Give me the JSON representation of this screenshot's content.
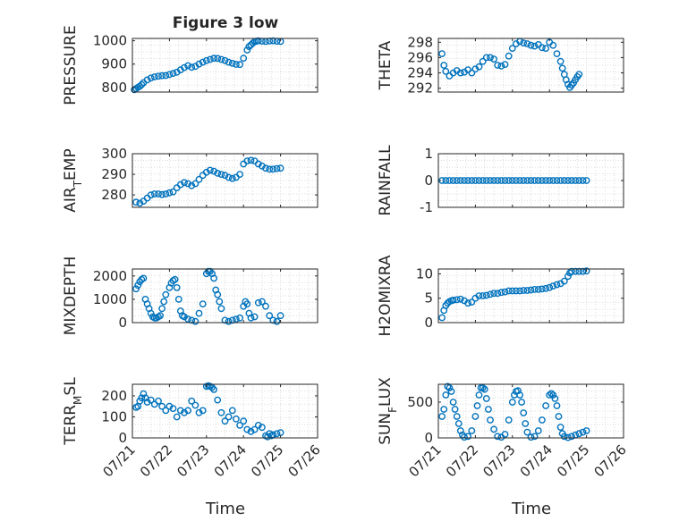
{
  "figure": {
    "title": "Figure 3 low",
    "xlabel": "Time"
  },
  "colors": {
    "marker": "#0072BD",
    "axis": "#262626",
    "grid": "#dcdcdc"
  },
  "chart_data": [
    {
      "type": "scatter",
      "ylabel": "PRESSURE",
      "xticks": [
        "07/21",
        "07/22",
        "07/23",
        "07/24",
        "07/25",
        "07/26"
      ],
      "xlim": [
        0,
        5
      ],
      "ylim": [
        780,
        1010
      ],
      "yticks": [
        800,
        900,
        1000
      ],
      "grid": true,
      "x": [
        0.05,
        0.1,
        0.15,
        0.2,
        0.25,
        0.3,
        0.4,
        0.5,
        0.6,
        0.7,
        0.8,
        0.9,
        1.0,
        1.1,
        1.2,
        1.3,
        1.4,
        1.5,
        1.6,
        1.7,
        1.8,
        1.9,
        2.0,
        2.1,
        2.2,
        2.3,
        2.4,
        2.5,
        2.6,
        2.7,
        2.8,
        2.9,
        3.0,
        3.1,
        3.15,
        3.2,
        3.25,
        3.3,
        3.35,
        3.4,
        3.5,
        3.6,
        3.7,
        3.8,
        3.9,
        4.0
      ],
      "y": [
        790,
        795,
        800,
        805,
        812,
        820,
        832,
        840,
        845,
        848,
        850,
        851,
        855,
        860,
        865,
        875,
        885,
        893,
        886,
        890,
        900,
        908,
        915,
        920,
        925,
        924,
        920,
        915,
        908,
        903,
        899,
        898,
        925,
        960,
        975,
        982,
        990,
        996,
        998,
        1000,
        998,
        997,
        999,
        1000,
        998,
        997
      ]
    },
    {
      "type": "scatter",
      "ylabel": "THETA",
      "xticks": [
        "07/21",
        "07/22",
        "07/23",
        "07/24",
        "07/25",
        "07/26"
      ],
      "xlim": [
        0,
        5
      ],
      "ylim": [
        291.5,
        298.5
      ],
      "yticks": [
        292,
        294,
        296,
        298
      ],
      "grid": true,
      "x": [
        0.1,
        0.15,
        0.2,
        0.3,
        0.4,
        0.5,
        0.6,
        0.7,
        0.8,
        0.9,
        1.0,
        1.1,
        1.2,
        1.3,
        1.4,
        1.5,
        1.6,
        1.7,
        1.8,
        1.9,
        2.0,
        2.1,
        2.2,
        2.3,
        2.4,
        2.5,
        2.6,
        2.7,
        2.8,
        2.9,
        3.0,
        3.1,
        3.2,
        3.3,
        3.35,
        3.4,
        3.45,
        3.5,
        3.55,
        3.6,
        3.65,
        3.7,
        3.75,
        3.8
      ],
      "y": [
        296.5,
        295,
        294.2,
        293.6,
        294,
        294.3,
        294,
        294.1,
        294.4,
        294,
        294.5,
        294.8,
        295.5,
        296,
        296,
        295.8,
        295,
        294.9,
        295.1,
        296.2,
        297.2,
        297.8,
        298.1,
        297.9,
        297.8,
        297.6,
        297.5,
        297.7,
        297.3,
        297.2,
        298,
        297.6,
        296.5,
        295.5,
        294.6,
        293.8,
        293.1,
        292.5,
        292.1,
        292.4,
        292.7,
        293.1,
        293.5,
        293.8
      ]
    },
    {
      "type": "scatter",
      "ylabel": "AIR_TEMP",
      "xticks": [
        "07/21",
        "07/22",
        "07/23",
        "07/24",
        "07/25",
        "07/26"
      ],
      "xlim": [
        0,
        5
      ],
      "ylim": [
        274,
        300
      ],
      "yticks": [
        280,
        290,
        300
      ],
      "grid": true,
      "x": [
        0.1,
        0.2,
        0.3,
        0.4,
        0.5,
        0.6,
        0.7,
        0.8,
        0.9,
        1.0,
        1.1,
        1.2,
        1.3,
        1.4,
        1.5,
        1.6,
        1.7,
        1.8,
        1.9,
        2.0,
        2.1,
        2.2,
        2.3,
        2.4,
        2.5,
        2.6,
        2.7,
        2.8,
        2.9,
        3.0,
        3.1,
        3.2,
        3.3,
        3.4,
        3.5,
        3.6,
        3.7,
        3.8,
        3.9,
        4.0
      ],
      "y": [
        276.5,
        276,
        277,
        278.5,
        280,
        280.5,
        280.5,
        280.2,
        280.5,
        281,
        281.5,
        283.5,
        285,
        286,
        285.5,
        284.5,
        285.5,
        287.5,
        289.5,
        291,
        292,
        291.5,
        290.5,
        290,
        289.5,
        288.5,
        288,
        288.5,
        290,
        295,
        296.5,
        296.8,
        296.5,
        295,
        294,
        293,
        292.5,
        292.5,
        292.8,
        293
      ]
    },
    {
      "type": "scatter",
      "ylabel": "RAINFALL",
      "xticks": [
        "07/21",
        "07/22",
        "07/23",
        "07/24",
        "07/25",
        "07/26"
      ],
      "xlim": [
        0,
        5
      ],
      "ylim": [
        -1,
        1
      ],
      "yticks": [
        -1,
        0,
        1
      ],
      "grid": true,
      "x": [
        0.1,
        0.2,
        0.3,
        0.4,
        0.5,
        0.6,
        0.7,
        0.8,
        0.9,
        1.0,
        1.1,
        1.2,
        1.3,
        1.4,
        1.5,
        1.6,
        1.7,
        1.8,
        1.9,
        2.0,
        2.1,
        2.2,
        2.3,
        2.4,
        2.5,
        2.6,
        2.7,
        2.8,
        2.9,
        3.0,
        3.1,
        3.2,
        3.3,
        3.4,
        3.5,
        3.6,
        3.7,
        3.8,
        3.9,
        4.0
      ],
      "y": [
        0,
        0,
        0,
        0,
        0,
        0,
        0,
        0,
        0,
        0,
        0,
        0,
        0,
        0,
        0,
        0,
        0,
        0,
        0,
        0,
        0,
        0,
        0,
        0,
        0,
        0,
        0,
        0,
        0,
        0,
        0,
        0,
        0,
        0,
        0,
        0,
        0,
        0,
        0,
        0
      ]
    },
    {
      "type": "scatter",
      "ylabel": "MIXDEPTH",
      "xticks": [
        "07/21",
        "07/22",
        "07/23",
        "07/24",
        "07/25",
        "07/26"
      ],
      "xlim": [
        0,
        5
      ],
      "ylim": [
        0,
        2300
      ],
      "yticks": [
        0,
        1000,
        2000
      ],
      "grid": true,
      "x": [
        0.1,
        0.15,
        0.2,
        0.25,
        0.3,
        0.35,
        0.4,
        0.45,
        0.5,
        0.55,
        0.6,
        0.65,
        0.7,
        0.75,
        0.8,
        0.85,
        0.9,
        1.0,
        1.05,
        1.1,
        1.15,
        1.2,
        1.25,
        1.3,
        1.35,
        1.4,
        1.5,
        1.6,
        1.7,
        1.8,
        1.9,
        2.0,
        2.05,
        2.1,
        2.15,
        2.2,
        2.25,
        2.3,
        2.35,
        2.4,
        2.5,
        2.6,
        2.7,
        2.8,
        2.9,
        3.0,
        3.05,
        3.1,
        3.15,
        3.2,
        3.3,
        3.4,
        3.5,
        3.6,
        3.7,
        3.8,
        3.9,
        4.0
      ],
      "y": [
        1450,
        1600,
        1750,
        1850,
        1900,
        1000,
        800,
        600,
        400,
        250,
        200,
        200,
        250,
        300,
        600,
        900,
        1200,
        1500,
        1700,
        1800,
        1850,
        1500,
        1000,
        500,
        300,
        250,
        150,
        100,
        50,
        400,
        800,
        2100,
        2200,
        2200,
        2100,
        1900,
        1400,
        1200,
        900,
        600,
        100,
        50,
        100,
        150,
        200,
        700,
        900,
        800,
        400,
        200,
        250,
        850,
        900,
        700,
        300,
        100,
        50,
        300
      ]
    },
    {
      "type": "scatter",
      "ylabel": "H2OMIXRA",
      "xticks": [
        "07/21",
        "07/22",
        "07/23",
        "07/24",
        "07/25",
        "07/26"
      ],
      "xlim": [
        0,
        5
      ],
      "ylim": [
        0,
        11
      ],
      "yticks": [
        0,
        5,
        10
      ],
      "grid": true,
      "x": [
        0.1,
        0.15,
        0.2,
        0.25,
        0.3,
        0.35,
        0.4,
        0.5,
        0.6,
        0.7,
        0.8,
        0.9,
        1.0,
        1.1,
        1.2,
        1.3,
        1.4,
        1.5,
        1.6,
        1.7,
        1.8,
        1.9,
        2.0,
        2.1,
        2.2,
        2.3,
        2.4,
        2.5,
        2.6,
        2.7,
        2.8,
        2.9,
        3.0,
        3.1,
        3.2,
        3.3,
        3.4,
        3.5,
        3.55,
        3.6,
        3.7,
        3.8,
        3.9,
        4.0
      ],
      "y": [
        1,
        2.5,
        3.5,
        4,
        4.3,
        4.5,
        4.6,
        4.7,
        4.8,
        4.5,
        4,
        4.2,
        5,
        5.5,
        5.5,
        5.6,
        5.8,
        6,
        6,
        6.2,
        6.3,
        6.5,
        6.5,
        6.5,
        6.5,
        6.6,
        6.6,
        6.7,
        6.8,
        6.8,
        6.9,
        7,
        7.2,
        7.5,
        7.8,
        8,
        8.5,
        9.5,
        10.2,
        10.5,
        10.5,
        10.5,
        10.5,
        10.6
      ]
    },
    {
      "type": "scatter",
      "ylabel": "TERR_MSL",
      "xticks": [
        "07/21",
        "07/22",
        "07/23",
        "07/24",
        "07/25",
        "07/26"
      ],
      "xlim": [
        0,
        5
      ],
      "ylim": [
        0,
        255
      ],
      "yticks": [
        0,
        100,
        200
      ],
      "grid": true,
      "x": [
        0.1,
        0.15,
        0.2,
        0.25,
        0.3,
        0.35,
        0.4,
        0.5,
        0.6,
        0.7,
        0.8,
        0.9,
        1.0,
        1.1,
        1.2,
        1.3,
        1.4,
        1.5,
        1.6,
        1.7,
        1.8,
        1.9,
        2.0,
        2.05,
        2.1,
        2.15,
        2.2,
        2.3,
        2.4,
        2.5,
        2.6,
        2.7,
        2.8,
        2.9,
        3.0,
        3.1,
        3.2,
        3.3,
        3.4,
        3.5,
        3.6,
        3.65,
        3.7,
        3.75,
        3.8,
        3.9,
        4.0
      ],
      "y": [
        145,
        150,
        175,
        190,
        210,
        190,
        170,
        180,
        160,
        175,
        150,
        130,
        150,
        140,
        100,
        130,
        120,
        130,
        175,
        155,
        120,
        130,
        245,
        248,
        245,
        240,
        230,
        180,
        120,
        80,
        100,
        130,
        90,
        60,
        80,
        40,
        30,
        40,
        60,
        50,
        10,
        5,
        20,
        10,
        15,
        20,
        25
      ]
    },
    {
      "type": "scatter",
      "ylabel": "SUN_FLUX",
      "xticks": [
        "07/21",
        "07/22",
        "07/23",
        "07/24",
        "07/25",
        "07/26"
      ],
      "xlim": [
        0,
        5
      ],
      "ylim": [
        0,
        750
      ],
      "yticks": [
        0,
        500
      ],
      "grid": true,
      "x": [
        0.1,
        0.15,
        0.2,
        0.25,
        0.3,
        0.35,
        0.4,
        0.45,
        0.5,
        0.55,
        0.6,
        0.65,
        0.7,
        0.8,
        0.9,
        1.0,
        1.05,
        1.1,
        1.15,
        1.2,
        1.25,
        1.3,
        1.35,
        1.4,
        1.5,
        1.6,
        1.7,
        1.8,
        1.9,
        2.0,
        2.05,
        2.1,
        2.15,
        2.2,
        2.25,
        2.3,
        2.35,
        2.4,
        2.5,
        2.6,
        2.7,
        2.8,
        2.9,
        3.0,
        3.05,
        3.1,
        3.15,
        3.2,
        3.25,
        3.3,
        3.35,
        3.4,
        3.5,
        3.6,
        3.7,
        3.8,
        3.9,
        4.0
      ],
      "y": [
        300,
        400,
        600,
        720,
        700,
        650,
        500,
        400,
        300,
        200,
        100,
        40,
        10,
        20,
        100,
        300,
        450,
        600,
        700,
        700,
        680,
        550,
        400,
        250,
        120,
        20,
        10,
        50,
        250,
        500,
        600,
        650,
        660,
        600,
        500,
        350,
        200,
        80,
        10,
        20,
        100,
        250,
        450,
        600,
        620,
        600,
        550,
        450,
        300,
        150,
        60,
        20,
        5,
        20,
        40,
        60,
        80,
        100
      ]
    }
  ]
}
